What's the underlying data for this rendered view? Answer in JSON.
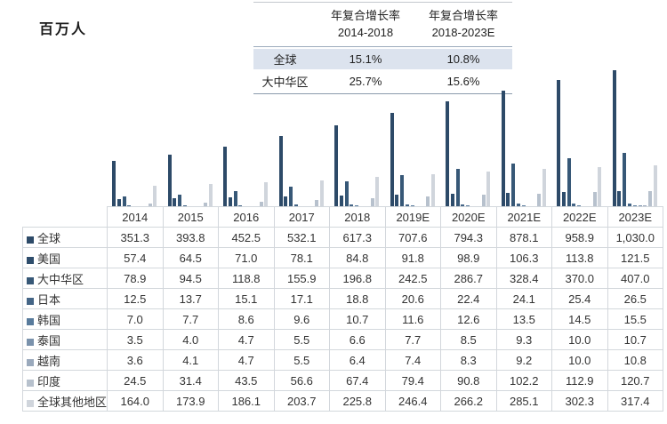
{
  "unit_label": "百万人",
  "growth_table": {
    "columns": [
      {
        "title": "年复合增长率",
        "period": "2014-2018"
      },
      {
        "title": "年复合增长率",
        "period": "2018-2023E"
      }
    ],
    "rows": [
      {
        "label": "全球",
        "values": [
          "15.1%",
          "10.8%"
        ]
      },
      {
        "label": "大中华区",
        "values": [
          "25.7%",
          "15.6%"
        ]
      }
    ],
    "shaded_row_color": "#dce3ee"
  },
  "chart_data": {
    "type": "bar",
    "title": "",
    "ylabel": "百万人",
    "xlabel": "",
    "ylim": [
      0,
      1030
    ],
    "grid": false,
    "legend_position": "table-rows-left",
    "categories": [
      "2014",
      "2015",
      "2016",
      "2017",
      "2018",
      "2019E",
      "2020E",
      "2021E",
      "2022E",
      "2023E"
    ],
    "series": [
      {
        "name": "全球",
        "color": "#2d4a68",
        "values": [
          351.3,
          393.8,
          452.5,
          532.1,
          617.3,
          707.6,
          794.3,
          878.1,
          958.9,
          1030.0
        ]
      },
      {
        "name": "美国",
        "color": "#2e4d6c",
        "values": [
          57.4,
          64.5,
          71.0,
          78.1,
          84.8,
          91.8,
          98.9,
          106.3,
          113.8,
          121.5
        ]
      },
      {
        "name": "大中华区",
        "color": "#375877",
        "values": [
          78.9,
          94.5,
          118.8,
          155.9,
          196.8,
          242.5,
          286.7,
          328.4,
          370.0,
          407.0
        ]
      },
      {
        "name": "日本",
        "color": "#446586",
        "values": [
          12.5,
          13.7,
          15.1,
          17.1,
          18.8,
          20.6,
          22.4,
          24.1,
          25.4,
          26.5
        ]
      },
      {
        "name": "韩国",
        "color": "#587b9c",
        "values": [
          7.0,
          7.7,
          8.6,
          9.6,
          10.7,
          11.6,
          12.6,
          13.5,
          14.5,
          15.5
        ]
      },
      {
        "name": "泰国",
        "color": "#7a92ac",
        "values": [
          3.5,
          4.0,
          4.7,
          5.5,
          6.6,
          7.7,
          8.5,
          9.3,
          10.0,
          10.7
        ]
      },
      {
        "name": "越南",
        "color": "#9aa9bc",
        "values": [
          3.6,
          4.1,
          4.7,
          5.5,
          6.4,
          7.4,
          8.3,
          9.2,
          10.0,
          10.8
        ]
      },
      {
        "name": "印度",
        "color": "#b7c1cd",
        "values": [
          24.5,
          31.4,
          43.5,
          56.6,
          67.4,
          79.4,
          90.8,
          102.2,
          112.9,
          120.7
        ]
      },
      {
        "name": "全球其他地区",
        "color": "#d0d5dc",
        "values": [
          164.0,
          173.9,
          186.1,
          203.7,
          225.8,
          246.4,
          266.2,
          285.1,
          302.3,
          317.4
        ]
      }
    ]
  },
  "data_table": {
    "corner": "",
    "year_headers": [
      "2014",
      "2015",
      "2016",
      "2017",
      "2018",
      "2019E",
      "2020E",
      "2021E",
      "2022E",
      "2023E"
    ],
    "rows": [
      {
        "label": "全球",
        "values": [
          "351.3",
          "393.8",
          "452.5",
          "532.1",
          "617.3",
          "707.6",
          "794.3",
          "878.1",
          "958.9",
          "1,030.0"
        ]
      },
      {
        "label": "美国",
        "values": [
          "57.4",
          "64.5",
          "71.0",
          "78.1",
          "84.8",
          "91.8",
          "98.9",
          "106.3",
          "113.8",
          "121.5"
        ]
      },
      {
        "label": "大中华区",
        "values": [
          "78.9",
          "94.5",
          "118.8",
          "155.9",
          "196.8",
          "242.5",
          "286.7",
          "328.4",
          "370.0",
          "407.0"
        ]
      },
      {
        "label": "日本",
        "values": [
          "12.5",
          "13.7",
          "15.1",
          "17.1",
          "18.8",
          "20.6",
          "22.4",
          "24.1",
          "25.4",
          "26.5"
        ]
      },
      {
        "label": "韩国",
        "values": [
          "7.0",
          "7.7",
          "8.6",
          "9.6",
          "10.7",
          "11.6",
          "12.6",
          "13.5",
          "14.5",
          "15.5"
        ]
      },
      {
        "label": "泰国",
        "values": [
          "3.5",
          "4.0",
          "4.7",
          "5.5",
          "6.6",
          "7.7",
          "8.5",
          "9.3",
          "10.0",
          "10.7"
        ]
      },
      {
        "label": "越南",
        "values": [
          "3.6",
          "4.1",
          "4.7",
          "5.5",
          "6.4",
          "7.4",
          "8.3",
          "9.2",
          "10.0",
          "10.8"
        ]
      },
      {
        "label": "印度",
        "values": [
          "24.5",
          "31.4",
          "43.5",
          "56.6",
          "67.4",
          "79.4",
          "90.8",
          "102.2",
          "112.9",
          "120.7"
        ]
      },
      {
        "label": "全球其他地区",
        "values": [
          "164.0",
          "173.9",
          "186.1",
          "203.7",
          "225.8",
          "246.4",
          "266.2",
          "285.1",
          "302.3",
          "317.4"
        ]
      }
    ]
  }
}
